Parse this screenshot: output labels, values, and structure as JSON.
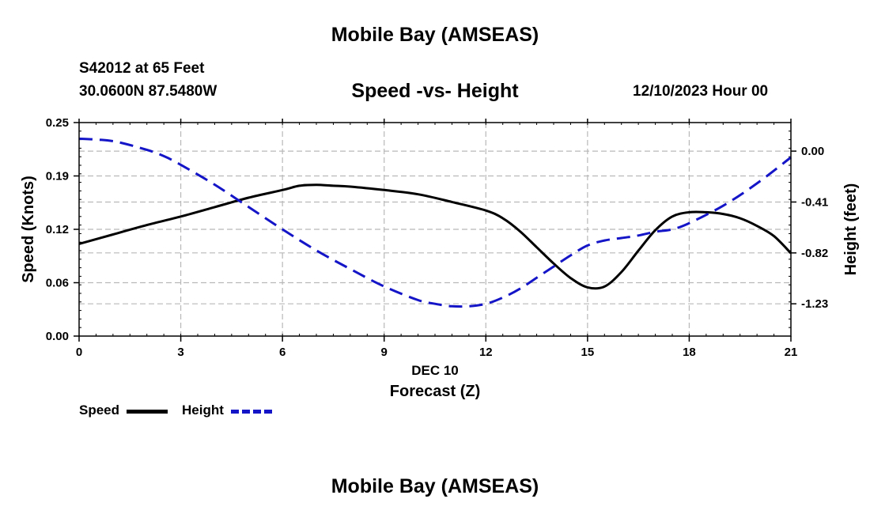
{
  "header": {
    "title": "Mobile Bay (AMSEAS)",
    "station": "S42012 at 65 Feet",
    "coordinates": "30.0600N  87.5480W",
    "chart_title": "Speed -vs- Height",
    "datetime": "12/10/2023 Hour 00"
  },
  "footer": {
    "title": "Mobile Bay (AMSEAS)"
  },
  "legend": {
    "speed_label": "Speed",
    "height_label": "Height",
    "speed_color": "#000000",
    "height_color": "#1515c8"
  },
  "chart_data": {
    "type": "line",
    "title": "Speed -vs- Height",
    "xlabel": "Forecast (Z)",
    "xlabel_date": "DEC 10",
    "ylabel": "Speed (Knots)",
    "y2label": "Height (feet)",
    "xlim": [
      0,
      21
    ],
    "ylim": [
      0,
      0.25
    ],
    "y2lim": [
      -1.49,
      0.23
    ],
    "x_ticks": [
      0,
      3,
      6,
      9,
      12,
      15,
      18,
      21
    ],
    "y_ticks": [
      "0.00",
      "0.06",
      "0.12",
      "0.19",
      "0.25"
    ],
    "y_tick_values": [
      0,
      0.0625,
      0.125,
      0.1875,
      0.25
    ],
    "y2_ticks": [
      "0.00",
      "-0.41",
      "-0.82",
      "-1.23"
    ],
    "y2_tick_values": [
      0,
      -0.41,
      -0.82,
      -1.23
    ],
    "grid": true,
    "legend_position": "bottom-left",
    "series": [
      {
        "name": "Speed",
        "axis": "left",
        "color": "#000000",
        "style": "solid",
        "x": [
          0,
          1,
          2,
          3,
          4,
          5,
          6,
          6.5,
          7,
          7.5,
          8,
          9,
          10,
          11,
          12,
          12.5,
          13,
          13.5,
          14,
          14.5,
          15,
          15.5,
          16,
          16.5,
          17,
          17.5,
          18,
          18.5,
          19,
          19.5,
          20,
          20.5,
          21
        ],
        "values": [
          0.108,
          0.119,
          0.13,
          0.14,
          0.151,
          0.162,
          0.171,
          0.176,
          0.177,
          0.176,
          0.175,
          0.171,
          0.166,
          0.157,
          0.147,
          0.138,
          0.123,
          0.104,
          0.085,
          0.068,
          0.057,
          0.058,
          0.075,
          0.1,
          0.124,
          0.14,
          0.145,
          0.145,
          0.143,
          0.138,
          0.129,
          0.117,
          0.097
        ]
      },
      {
        "name": "Height",
        "axis": "right",
        "color": "#1515c8",
        "style": "dashed",
        "x": [
          0,
          1,
          2,
          2.5,
          3,
          4,
          5,
          6,
          7,
          8,
          9,
          10,
          10.5,
          11,
          11.5,
          12,
          12.5,
          13,
          13.5,
          14,
          14.5,
          15,
          15.5,
          16,
          16.5,
          17,
          17.5,
          18,
          19,
          20,
          21
        ],
        "values": [
          0.1,
          0.08,
          0.01,
          -0.04,
          -0.11,
          -0.27,
          -0.45,
          -0.63,
          -0.8,
          -0.95,
          -1.09,
          -1.2,
          -1.23,
          -1.25,
          -1.25,
          -1.23,
          -1.18,
          -1.11,
          -1.02,
          -0.93,
          -0.84,
          -0.76,
          -0.72,
          -0.7,
          -0.68,
          -0.65,
          -0.63,
          -0.58,
          -0.44,
          -0.26,
          -0.05
        ]
      }
    ]
  }
}
